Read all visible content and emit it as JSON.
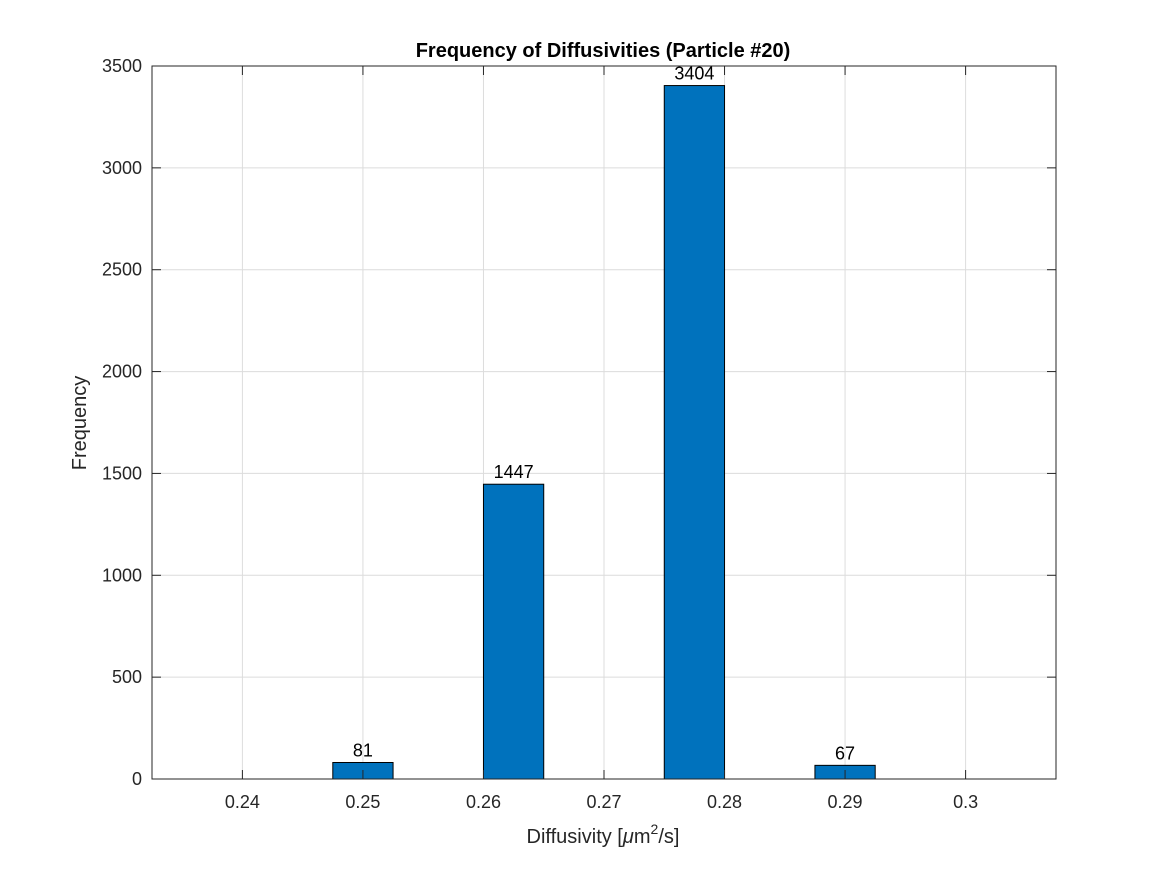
{
  "chart_data": {
    "type": "bar",
    "title": "Frequency of Diffusivities (Particle #20)",
    "xlabel": {
      "prefix": "Diffusivity [",
      "mu": "μ",
      "unit": "m",
      "sup": "2",
      "suffix": "/s]"
    },
    "ylabel": "Frequency",
    "bar_width": 0.005,
    "categories": [
      0.25,
      0.2625,
      0.2775,
      0.29
    ],
    "values": [
      81,
      1447,
      3404,
      67
    ],
    "data_labels": [
      "81",
      "1447",
      "3404",
      "67"
    ],
    "xlim": [
      0.2325,
      0.3075
    ],
    "ylim": [
      0,
      3500
    ],
    "xticks": [
      0.24,
      0.25,
      0.26,
      0.27,
      0.28,
      0.29,
      0.3
    ],
    "xtick_labels": [
      "0.24",
      "0.25",
      "0.26",
      "0.27",
      "0.28",
      "0.29",
      "0.3"
    ],
    "yticks": [
      0,
      500,
      1000,
      1500,
      2000,
      2500,
      3000,
      3500
    ],
    "ytick_labels": [
      "0",
      "500",
      "1000",
      "1500",
      "2000",
      "2500",
      "3000",
      "3500"
    ],
    "grid": true,
    "colors": {
      "bar": "#0072bd",
      "bar_edge": "#000000",
      "axis": "#262626",
      "grid": "#dcdcdc"
    }
  }
}
